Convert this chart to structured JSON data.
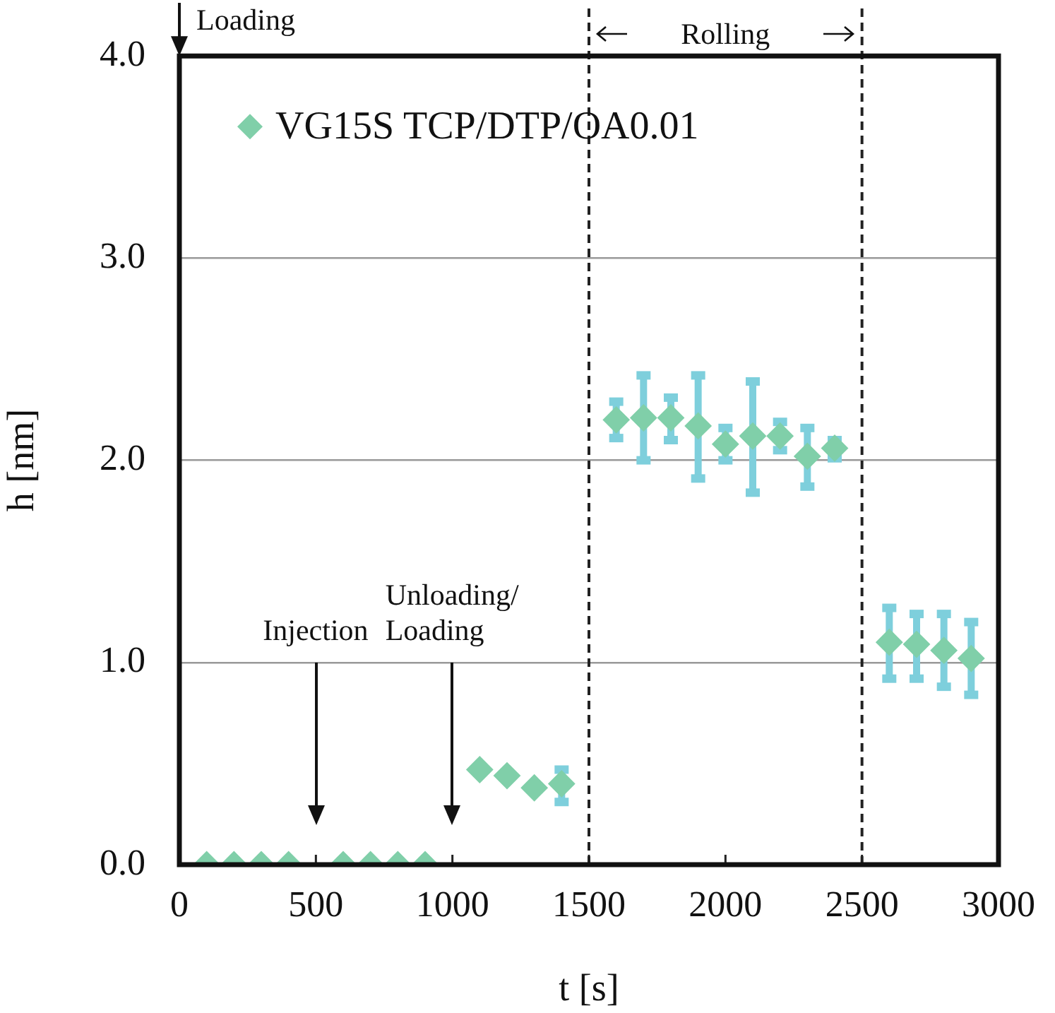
{
  "chart_data": {
    "type": "scatter",
    "xlabel": "t [s]",
    "ylabel": "h [nm]",
    "xlim": [
      0,
      3000
    ],
    "xticks": [
      0,
      500,
      1000,
      1500,
      2000,
      2500,
      3000
    ],
    "ylim": [
      0,
      4
    ],
    "yticks": [
      {
        "value": 0,
        "label": "0.0"
      },
      {
        "value": 1,
        "label": "1.0"
      },
      {
        "value": 2,
        "label": "2.0"
      },
      {
        "value": 3,
        "label": "3.0"
      },
      {
        "value": 4,
        "label": "4.0"
      }
    ],
    "x": [
      100,
      200,
      300,
      400,
      600,
      700,
      800,
      900,
      1100,
      1200,
      1300,
      1400,
      1600,
      1700,
      1800,
      1900,
      2000,
      2100,
      2200,
      2300,
      2400,
      2600,
      2700,
      2800,
      2900
    ],
    "series": [
      {
        "name": "VG15S TCP/DTP/OA0.01",
        "color": "#80cfa9",
        "values": [
          0,
          0,
          0,
          0,
          0,
          0,
          0,
          0,
          0.47,
          0.44,
          0.38,
          0.4,
          2.2,
          2.21,
          2.21,
          2.17,
          2.08,
          2.12,
          2.12,
          2.02,
          2.06,
          1.1,
          1.09,
          1.06,
          1.02
        ],
        "errors": [
          null,
          null,
          null,
          null,
          null,
          null,
          null,
          null,
          null,
          null,
          null,
          [
            0.31,
            0.47
          ],
          [
            2.11,
            2.29
          ],
          [
            2.0,
            2.42
          ],
          [
            2.1,
            2.31
          ],
          [
            1.91,
            2.42
          ],
          [
            2.0,
            2.16
          ],
          [
            1.84,
            2.39
          ],
          [
            2.05,
            2.19
          ],
          [
            1.87,
            2.16
          ],
          [
            2.01,
            2.1
          ],
          [
            0.92,
            1.27
          ],
          [
            0.92,
            1.24
          ],
          [
            0.88,
            1.24
          ],
          [
            0.84,
            1.2
          ]
        ]
      }
    ],
    "ref_lines": [
      {
        "axis": "x",
        "value": 1500,
        "line_style": "dashed",
        "color": "#222222"
      },
      {
        "axis": "x",
        "value": 2500,
        "line_style": "dashed",
        "color": "#222222"
      }
    ],
    "annotations": [
      "Loading",
      "Injection",
      "Unloading/\nLoading",
      "Rolling"
    ],
    "grid": "y",
    "legend": "top left",
    "marker": "diamond"
  }
}
